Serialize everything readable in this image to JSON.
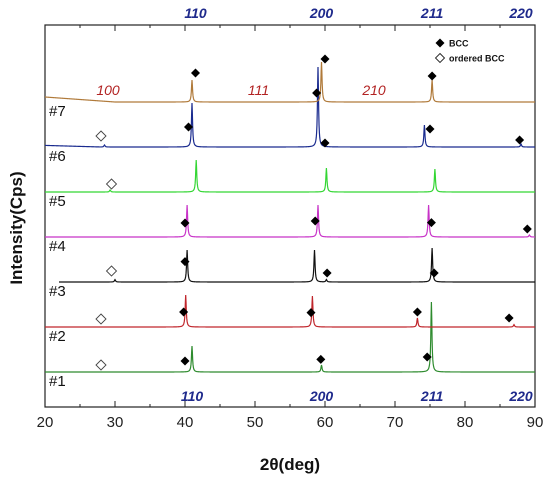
{
  "chart_data": {
    "type": "line",
    "xlabel": "2θ(deg)",
    "ylabel": "Intensity(Cps)",
    "xlim": [
      20,
      90
    ],
    "x_ticks": [
      "20",
      "30",
      "40",
      "50",
      "60",
      "70",
      "80",
      "90"
    ],
    "y_ticks_shown": false,
    "grid": false,
    "colors": {
      "miller_top": "#1f2a8c",
      "miller_mid": "#b22222"
    },
    "top_miller_labels": [
      {
        "text": "110",
        "x": 41.5
      },
      {
        "text": "200",
        "x": 59.5
      },
      {
        "text": "211",
        "x": 75.3
      },
      {
        "text": "220",
        "x": 88.0
      }
    ],
    "bottom_miller_labels": [
      {
        "text": "110",
        "x": 41.0
      },
      {
        "text": "200",
        "x": 59.5
      },
      {
        "text": "211",
        "x": 75.3
      },
      {
        "text": "220",
        "x": 88.0
      }
    ],
    "superlattice_labels": [
      {
        "text": "100",
        "x": 29.0
      },
      {
        "text": "111",
        "x": 50.5
      },
      {
        "text": "210",
        "x": 67.0
      }
    ],
    "legend": {
      "placement": "top-right",
      "entries": [
        {
          "marker": "filled-diamond",
          "label": "BCC"
        },
        {
          "marker": "open-diamond",
          "label": "ordered BCC"
        }
      ]
    },
    "series": [
      {
        "name": "#1",
        "color": "#2e8b2e",
        "baseline": 0.0,
        "x_start": 20,
        "x_end": 90,
        "peaks": [
          {
            "x": 41.0,
            "h": 1.3
          },
          {
            "x": 59.5,
            "h": 0.35
          },
          {
            "x": 75.2,
            "h": 3.5
          }
        ],
        "bcc_markers": [
          {
            "x": 40.0,
            "y": 0.55
          },
          {
            "x": 59.4,
            "y": 0.63
          },
          {
            "x": 74.6,
            "y": 0.75
          }
        ],
        "ordered_markers": [
          {
            "x": 28.0,
            "y": 0.35
          }
        ]
      },
      {
        "name": "#2",
        "color": "#c0262c",
        "baseline": 1.0,
        "x_start": 20,
        "x_end": 90,
        "peaks": [
          {
            "x": 40.1,
            "h": 1.6
          },
          {
            "x": 58.2,
            "h": 1.55
          },
          {
            "x": 73.2,
            "h": 0.45
          },
          {
            "x": 87.0,
            "h": 0.12
          }
        ],
        "bcc_markers": [
          {
            "x": 39.8,
            "y": 0.75
          },
          {
            "x": 58.0,
            "y": 0.72
          },
          {
            "x": 73.2,
            "y": 0.75
          },
          {
            "x": 86.3,
            "y": 0.45
          }
        ],
        "ordered_markers": [
          {
            "x": 28.0,
            "y": 0.4
          }
        ]
      },
      {
        "name": "#3",
        "color": "#111111",
        "baseline": 2.0,
        "x_start": 22,
        "x_end": 90,
        "peaks": [
          {
            "x": 30.0,
            "h": 0.12
          },
          {
            "x": 40.3,
            "h": 1.6
          },
          {
            "x": 58.5,
            "h": 1.6
          },
          {
            "x": 60.2,
            "h": 0.12
          },
          {
            "x": 75.3,
            "h": 1.7
          }
        ],
        "bcc_markers": [
          {
            "x": 40.0,
            "y": 1.02
          },
          {
            "x": 60.3,
            "y": 0.45
          },
          {
            "x": 75.6,
            "y": 0.45
          }
        ],
        "ordered_markers": [
          {
            "x": 29.5,
            "y": 0.55
          }
        ]
      },
      {
        "name": "#4",
        "color": "#c833c8",
        "baseline": 3.0,
        "x_start": 20,
        "x_end": 90,
        "peaks": [
          {
            "x": 40.3,
            "h": 1.6
          },
          {
            "x": 59.0,
            "h": 1.6
          },
          {
            "x": 74.8,
            "h": 1.6
          },
          {
            "x": 89.2,
            "h": 0.1
          }
        ],
        "bcc_markers": [
          {
            "x": 40.0,
            "y": 0.7
          },
          {
            "x": 58.6,
            "y": 0.8
          },
          {
            "x": 75.2,
            "y": 0.72
          },
          {
            "x": 88.9,
            "y": 0.4
          }
        ],
        "ordered_markers": []
      },
      {
        "name": "#5",
        "color": "#33d633",
        "baseline": 4.0,
        "x_start": 20,
        "x_end": 90,
        "peaks": [
          {
            "x": 29.3,
            "h": 0.1
          },
          {
            "x": 41.6,
            "h": 1.6
          },
          {
            "x": 60.2,
            "h": 1.2
          },
          {
            "x": 75.7,
            "h": 1.15
          }
        ],
        "bcc_markers": [],
        "ordered_markers": [
          {
            "x": 29.5,
            "y": 0.4
          }
        ]
      },
      {
        "name": "#6",
        "color": "#1a2b8f",
        "baseline": 5.0,
        "x_start": 20,
        "x_end": 90,
        "peaks": [
          {
            "x": 28.5,
            "h": 0.1
          },
          {
            "x": 41.0,
            "h": 2.2
          },
          {
            "x": 59.0,
            "h": 4.0
          },
          {
            "x": 74.2,
            "h": 1.1
          },
          {
            "x": 88.0,
            "h": 0.15
          }
        ],
        "bcc_markers": [
          {
            "x": 40.5,
            "y": 1.0
          },
          {
            "x": 60.0,
            "y": 0.2
          },
          {
            "x": 75.0,
            "y": 0.9
          },
          {
            "x": 87.8,
            "y": 0.35
          }
        ],
        "ordered_markers": [
          {
            "x": 28.0,
            "y": 0.55
          }
        ]
      },
      {
        "name": "#7",
        "color": "#b07a3a",
        "baseline": 6.0,
        "x_start": 20,
        "x_end": 90,
        "peaks": [
          {
            "x": 41.0,
            "h": 1.1
          },
          {
            "x": 59.5,
            "h": 2.0
          },
          {
            "x": 75.3,
            "h": 1.1
          }
        ],
        "bcc_markers": [
          {
            "x": 41.5,
            "y": 1.45
          },
          {
            "x": 58.8,
            "y": 0.45
          },
          {
            "x": 60.0,
            "y": 2.15
          },
          {
            "x": 75.3,
            "y": 1.3
          }
        ],
        "ordered_markers": []
      }
    ]
  }
}
